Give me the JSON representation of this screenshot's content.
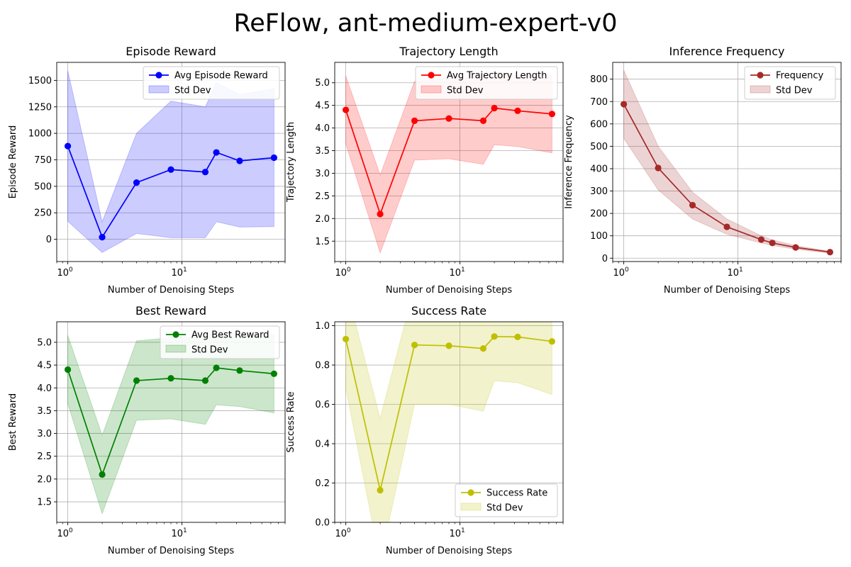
{
  "figure": {
    "title": "ReFlow, ant-medium-expert-v0"
  },
  "chart_data": [
    {
      "type": "line",
      "title": "Episode Reward",
      "xlabel": "Number of Denoising Steps",
      "ylabel": "Episode Reward",
      "xscale": "log",
      "xlim": [
        0.8,
        80
      ],
      "ylim": [
        -210,
        1670
      ],
      "yticks": [
        0,
        250,
        500,
        750,
        1000,
        1250,
        1500
      ],
      "xtick_labels": [
        "10^0",
        "10^1"
      ],
      "grid": true,
      "legend_placement": "upper right",
      "color": "#0000ff",
      "series": [
        {
          "name": "Avg Episode Reward",
          "kind": "line",
          "x": [
            1,
            2,
            4,
            8,
            16,
            20,
            32,
            64
          ],
          "y": [
            880,
            20,
            535,
            658,
            635,
            820,
            740,
            770
          ]
        },
        {
          "name": "Std Dev",
          "kind": "band",
          "x": [
            1,
            2,
            4,
            8,
            16,
            20,
            32,
            64
          ],
          "lower": [
            170,
            -125,
            55,
            15,
            15,
            165,
            115,
            120
          ],
          "upper": [
            1590,
            165,
            1000,
            1305,
            1250,
            1475,
            1365,
            1420
          ]
        }
      ]
    },
    {
      "type": "line",
      "title": "Trajectory Length",
      "xlabel": "Number of Denoising Steps",
      "ylabel": "Trajectory Length",
      "xscale": "log",
      "xlim": [
        0.8,
        80
      ],
      "ylim": [
        1.05,
        5.45
      ],
      "yticks": [
        1.5,
        2.0,
        2.5,
        3.0,
        3.5,
        4.0,
        4.5,
        5.0
      ],
      "xtick_labels": [
        "10^0",
        "10^1"
      ],
      "grid": true,
      "legend_placement": "upper right",
      "color": "#ff0000",
      "series": [
        {
          "name": "Avg Trajectory Length",
          "kind": "line",
          "x": [
            1,
            2,
            4,
            8,
            16,
            20,
            32,
            64
          ],
          "y": [
            4.4,
            2.1,
            4.16,
            4.21,
            4.16,
            4.44,
            4.38,
            4.31
          ]
        },
        {
          "name": "Std Dev",
          "kind": "band",
          "x": [
            1,
            2,
            4,
            8,
            16,
            20,
            32,
            64
          ],
          "lower": [
            3.65,
            1.24,
            3.29,
            3.32,
            3.2,
            3.63,
            3.59,
            3.45
          ],
          "upper": [
            5.15,
            2.96,
            5.03,
            5.1,
            5.12,
            5.25,
            5.17,
            5.17
          ]
        }
      ]
    },
    {
      "type": "line",
      "title": "Inference Frequency",
      "xlabel": "Number of Denoising Steps",
      "ylabel": "Inference Frequency",
      "xscale": "log",
      "xlim": [
        0.8,
        80
      ],
      "ylim": [
        -15,
        875
      ],
      "yticks": [
        0,
        100,
        200,
        300,
        400,
        500,
        600,
        700,
        800
      ],
      "xtick_labels": [
        "10^0",
        "10^1"
      ],
      "grid": true,
      "legend_placement": "upper right",
      "color": "#a52a2a",
      "series": [
        {
          "name": "Frequency",
          "kind": "line",
          "x": [
            1,
            2,
            4,
            8,
            16,
            20,
            32,
            64
          ],
          "y": [
            688,
            403,
            237,
            140,
            83,
            68,
            48,
            27
          ]
        },
        {
          "name": "Std Dev",
          "kind": "band",
          "x": [
            1,
            2,
            4,
            8,
            16,
            20,
            32,
            64
          ],
          "lower": [
            535,
            305,
            175,
            107,
            68,
            57,
            40,
            23
          ],
          "upper": [
            840,
            500,
            295,
            175,
            100,
            82,
            56,
            31
          ]
        }
      ]
    },
    {
      "type": "line",
      "title": "Best Reward",
      "xlabel": "Number of Denoising Steps",
      "ylabel": "Best Reward",
      "xscale": "log",
      "xlim": [
        0.8,
        80
      ],
      "ylim": [
        1.05,
        5.45
      ],
      "yticks": [
        1.5,
        2.0,
        2.5,
        3.0,
        3.5,
        4.0,
        4.5,
        5.0
      ],
      "xtick_labels": [
        "10^0",
        "10^1"
      ],
      "grid": true,
      "legend_placement": "upper right",
      "color": "#008000",
      "series": [
        {
          "name": "Avg Best Reward",
          "kind": "line",
          "x": [
            1,
            2,
            4,
            8,
            16,
            20,
            32,
            64
          ],
          "y": [
            4.4,
            2.1,
            4.16,
            4.21,
            4.16,
            4.44,
            4.38,
            4.31
          ]
        },
        {
          "name": "Std Dev",
          "kind": "band",
          "x": [
            1,
            2,
            4,
            8,
            16,
            20,
            32,
            64
          ],
          "lower": [
            3.65,
            1.24,
            3.29,
            3.32,
            3.2,
            3.63,
            3.59,
            3.45
          ],
          "upper": [
            5.15,
            2.96,
            5.03,
            5.1,
            5.12,
            5.25,
            5.17,
            5.17
          ]
        }
      ]
    },
    {
      "type": "line",
      "title": "Success Rate",
      "xlabel": "Number of Denoising Steps",
      "ylabel": "Success Rate",
      "xscale": "log",
      "xlim": [
        0.8,
        80
      ],
      "ylim": [
        0.0,
        1.02
      ],
      "yticks": [
        0.0,
        0.2,
        0.4,
        0.6,
        0.8,
        1.0
      ],
      "xtick_labels": [
        "10^0",
        "10^1"
      ],
      "grid": true,
      "legend_placement": "lower right",
      "color": "#bfbf00",
      "series": [
        {
          "name": "Success Rate",
          "kind": "line",
          "x": [
            1,
            2,
            4,
            8,
            16,
            20,
            32,
            64
          ],
          "y": [
            0.932,
            0.163,
            0.902,
            0.898,
            0.884,
            0.945,
            0.943,
            0.92
          ]
        },
        {
          "name": "Std Dev",
          "kind": "band",
          "x": [
            1,
            2,
            4,
            8,
            16,
            20,
            32,
            64
          ],
          "lower": [
            0.68,
            -0.2,
            0.6,
            0.6,
            0.565,
            0.72,
            0.71,
            0.65
          ],
          "upper": [
            1.2,
            0.53,
            1.2,
            1.2,
            1.2,
            1.17,
            1.17,
            1.19
          ]
        }
      ]
    }
  ]
}
